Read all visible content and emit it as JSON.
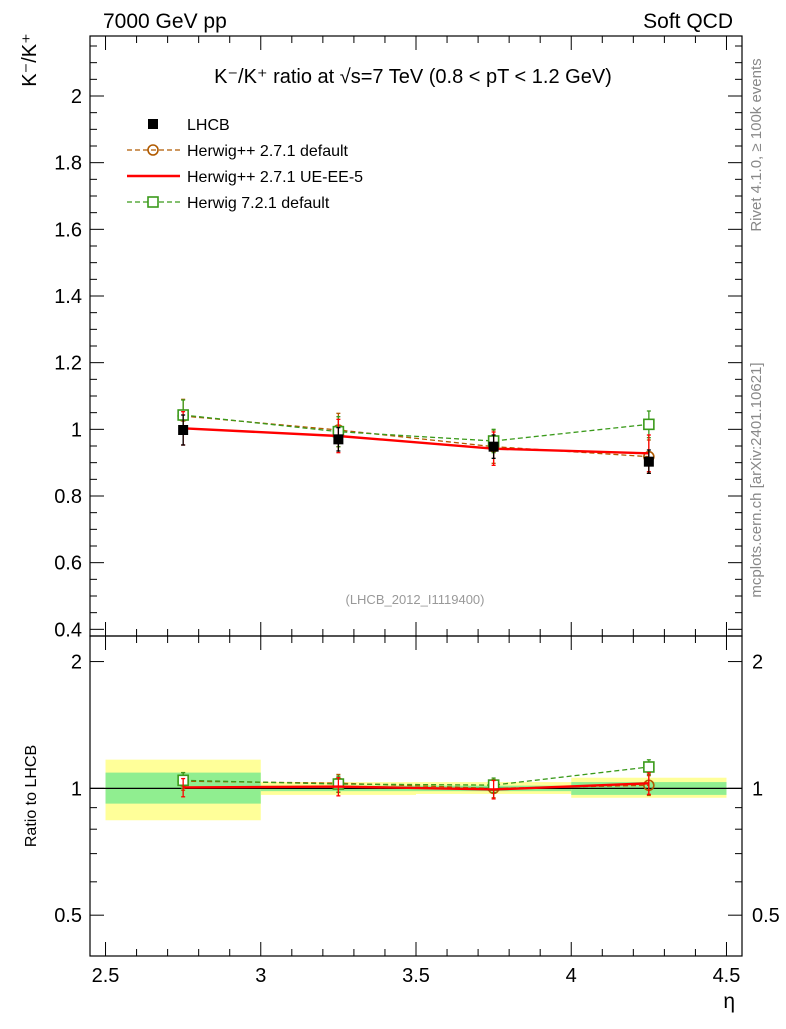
{
  "header": {
    "left": "7000 GeV pp",
    "right": "Soft QCD"
  },
  "side_labels": {
    "rivet": "Rivet 4.1.0, ≥ 100k events",
    "mcplots": "mcplots.cern.ch [arXiv:2401.10621]"
  },
  "colors": {
    "data": "#000000",
    "herwigpp_default": "#b05a00",
    "herwigpp_ueee5": "#ff0000",
    "herwig7": "#3a9a1a",
    "band_inner": "#90ee90",
    "band_outer": "#ffff99"
  },
  "chart_data": [
    {
      "type": "line",
      "title": "K⁻/K⁺ ratio at √s=7 TeV (0.8 < pT < 1.2 GeV)",
      "ylabel": "K⁻/K⁺",
      "xlabel": "η",
      "watermark": "(LHCB_2012_I1119400)",
      "xlim": [
        2.45,
        4.55
      ],
      "ylim": [
        0.38,
        2.18
      ],
      "xticks": [
        "2.5",
        "3",
        "3.5",
        "4",
        "4.5"
      ],
      "xtick_values": [
        2.5,
        3.0,
        3.5,
        4.0,
        4.5
      ],
      "yticks": [
        "0.4",
        "0.6",
        "0.8",
        "1",
        "1.2",
        "1.4",
        "1.6",
        "1.8",
        "2"
      ],
      "ytick_values": [
        0.4,
        0.6,
        0.8,
        1.0,
        1.2,
        1.4,
        1.6,
        1.8,
        2.0
      ],
      "x": [
        2.75,
        3.25,
        3.75,
        4.25
      ],
      "bins": [
        [
          2.5,
          3.0
        ],
        [
          3.0,
          3.5
        ],
        [
          3.5,
          4.0
        ],
        [
          4.0,
          4.5
        ]
      ],
      "series": [
        {
          "name": "LHCB",
          "key": "data",
          "marker": "filled-square",
          "values": [
            0.998,
            0.97,
            0.948,
            0.903
          ],
          "errors": [
            0.045,
            0.035,
            0.035,
            0.035
          ]
        },
        {
          "name": "Herwig++ 2.7.1 default",
          "key": "herwigpp_default",
          "marker": "open-circle",
          "dashed": true,
          "values": [
            1.04,
            0.998,
            0.948,
            0.918
          ],
          "errors": [
            0.05,
            0.05,
            0.05,
            0.05
          ]
        },
        {
          "name": "Herwig++ 2.7.1 UE-EE-5",
          "key": "herwigpp_ueee5",
          "marker": "none",
          "dashed": false,
          "values": [
            1.003,
            0.98,
            0.942,
            0.928
          ],
          "errors": [
            0.05,
            0.05,
            0.05,
            0.055
          ]
        },
        {
          "name": "Herwig 7.2.1 default",
          "key": "herwig7",
          "marker": "open-square",
          "dashed": true,
          "values": [
            1.043,
            0.993,
            0.965,
            1.015
          ],
          "errors": [
            0.045,
            0.045,
            0.035,
            0.04
          ]
        }
      ]
    },
    {
      "type": "line",
      "ylabel": "Ratio to LHCB",
      "xlabel": "η",
      "scale": "log",
      "xlim": [
        2.45,
        4.55
      ],
      "ylim": [
        0.4,
        2.3
      ],
      "xticks": [
        "2.5",
        "3",
        "3.5",
        "4",
        "4.5"
      ],
      "xtick_values": [
        2.5,
        3.0,
        3.5,
        4.0,
        4.5
      ],
      "yticks": [
        "0.5",
        "1",
        "2"
      ],
      "ytick_values": [
        0.5,
        1.0,
        2.0
      ],
      "band_inner": [
        [
          0.92,
          1.09
        ],
        [
          0.985,
          1.015
        ],
        [
          0.985,
          1.015
        ],
        [
          0.965,
          1.035
        ]
      ],
      "band_outer": [
        [
          0.84,
          1.17
        ],
        [
          0.965,
          1.035
        ],
        [
          0.97,
          1.035
        ],
        [
          0.95,
          1.06
        ]
      ],
      "series": [
        {
          "name": "Herwig++ 2.7.1 default",
          "key": "herwigpp_default",
          "marker": "open-circle",
          "dashed": true,
          "values": [
            1.04,
            1.029,
            1.0,
            1.017
          ],
          "errors": [
            0.05,
            0.05,
            0.05,
            0.055
          ]
        },
        {
          "name": "Herwig++ 2.7.1 UE-EE-5",
          "key": "herwigpp_ueee5",
          "marker": "none",
          "dashed": false,
          "values": [
            1.005,
            1.01,
            0.994,
            1.028
          ],
          "errors": [
            0.05,
            0.05,
            0.05,
            0.06
          ]
        },
        {
          "name": "Herwig 7.2.1 default",
          "key": "herwig7",
          "marker": "open-square",
          "dashed": true,
          "values": [
            1.045,
            1.024,
            1.018,
            1.124
          ],
          "errors": [
            0.045,
            0.045,
            0.04,
            0.045
          ]
        }
      ]
    }
  ]
}
